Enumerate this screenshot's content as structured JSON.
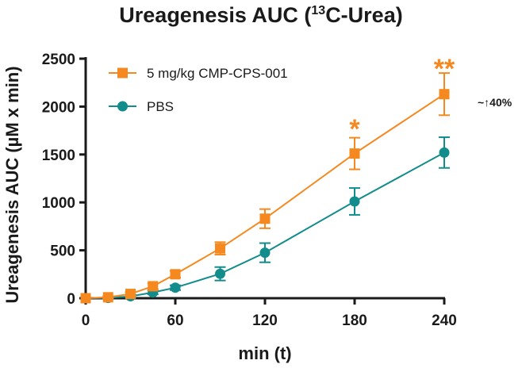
{
  "chart_data": {
    "type": "line",
    "title_main": "Ureagenesis AUC",
    "title_sup": "13",
    "title_rest": "C-Urea)",
    "title_open": "(",
    "xlabel": "min (t)",
    "ylabel": "Ureagenesis AUC  (µM x min)",
    "xlim": [
      0,
      240
    ],
    "ylim": [
      0,
      2500
    ],
    "xticks": [
      0,
      60,
      120,
      180,
      240
    ],
    "yticks": [
      0,
      500,
      1000,
      1500,
      2000,
      2500
    ],
    "grid": false,
    "legend_position": "top-left",
    "series": [
      {
        "name": "5 mg/kg CMP-CPS-001",
        "color": "#F5891F",
        "marker": "square",
        "x": [
          0,
          15,
          30,
          45,
          60,
          90,
          120,
          180,
          240
        ],
        "y": [
          0,
          10,
          45,
          125,
          250,
          520,
          830,
          1510,
          2130
        ],
        "err": [
          0,
          10,
          20,
          30,
          35,
          65,
          100,
          165,
          220
        ]
      },
      {
        "name": "PBS",
        "color": "#138C8C",
        "marker": "circle",
        "x": [
          0,
          15,
          30,
          45,
          60,
          90,
          120,
          180,
          240
        ],
        "y": [
          0,
          3,
          20,
          60,
          110,
          255,
          475,
          1010,
          1520
        ],
        "err": [
          0,
          5,
          15,
          20,
          25,
          70,
          100,
          140,
          160
        ]
      }
    ],
    "annotations": [
      {
        "text": "*",
        "x": 180,
        "series": 0
      },
      {
        "text": "**",
        "x": 240,
        "series": 0
      },
      {
        "text": "~↑40%",
        "x": 240,
        "series": 0
      }
    ]
  }
}
